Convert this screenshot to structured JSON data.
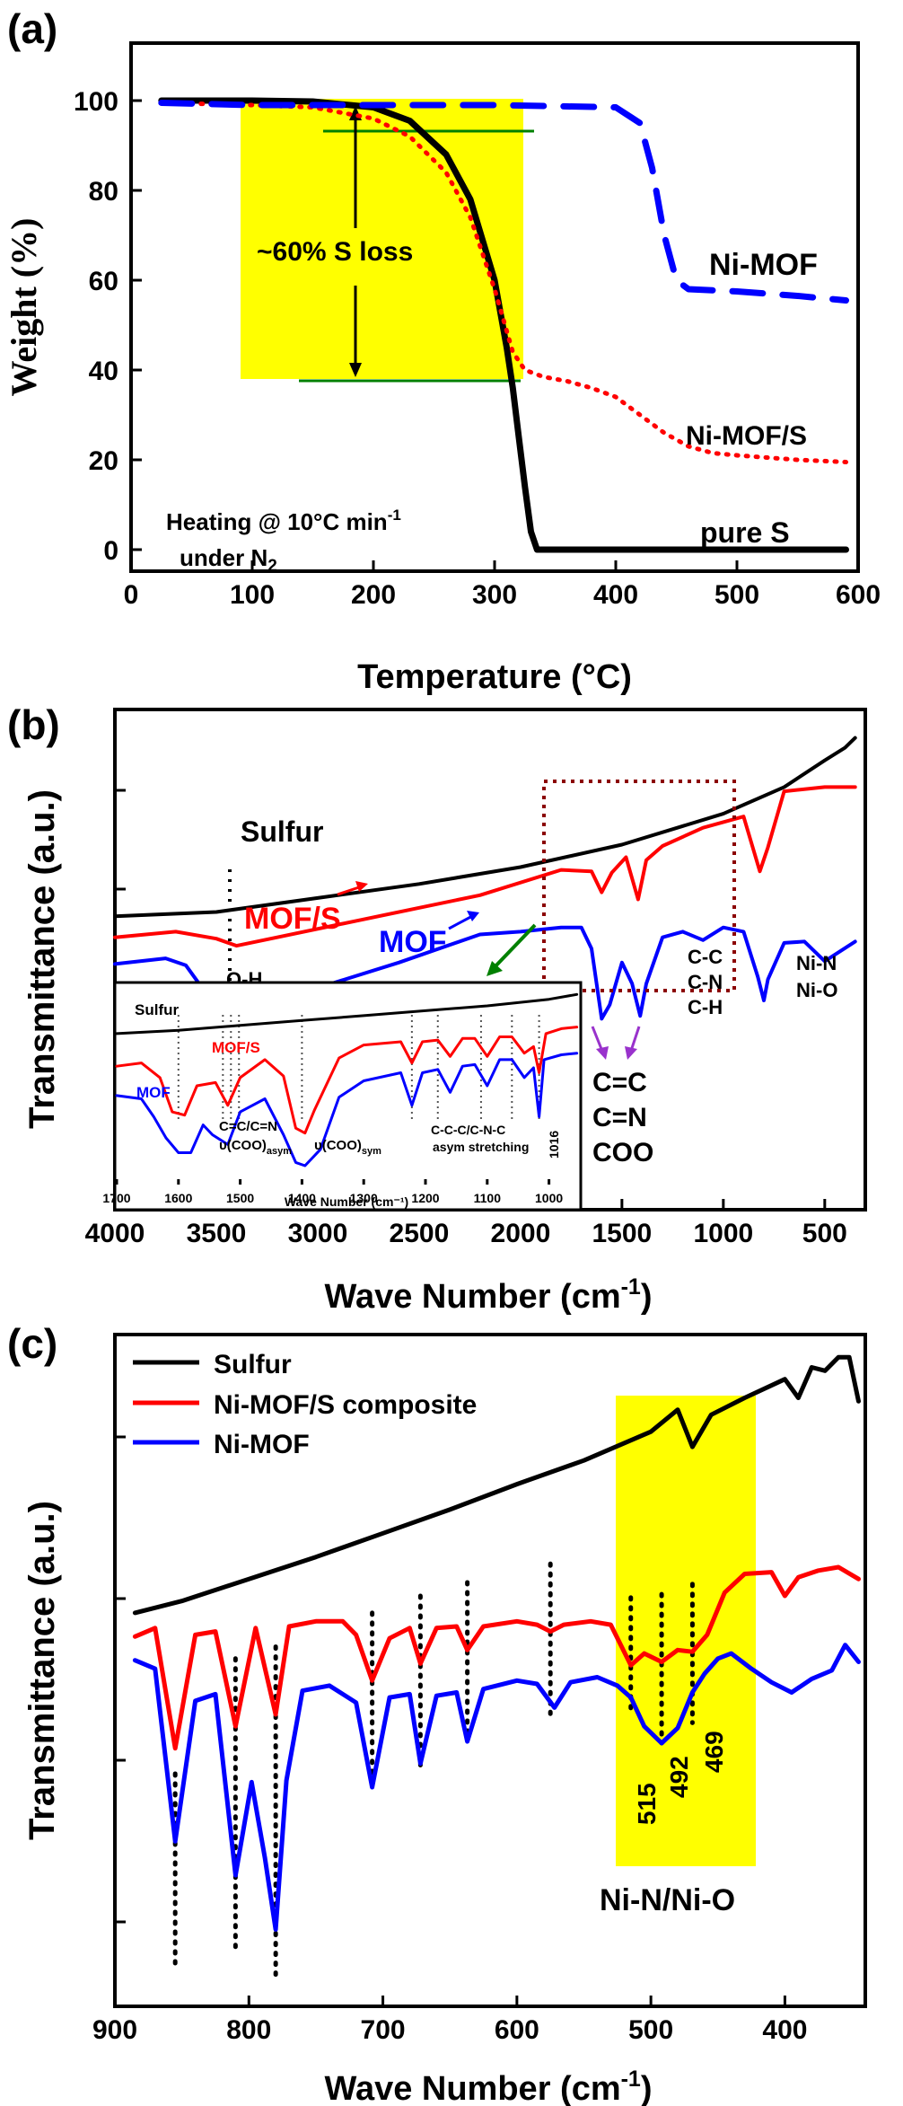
{
  "panels": [
    {
      "letter": "(a)",
      "chart_data": {
        "type": "line",
        "xlabel": "Temperature (°C)",
        "ylabel": "Weight (%)",
        "xlim": [
          0,
          600
        ],
        "ylim": [
          -6,
          112
        ],
        "xticks": [
          0,
          100,
          200,
          300,
          400,
          500,
          600
        ],
        "yticks": [
          0,
          20,
          40,
          60,
          80,
          100
        ],
        "series": [
          {
            "name": "pure S",
            "color": "#000000",
            "style": "solid",
            "x": [
              25,
              100,
              150,
              200,
              230,
              260,
              280,
              300,
              310,
              315,
              320,
              325,
              330,
              335,
              400,
              500,
              590
            ],
            "y": [
              100,
              100,
              99.8,
              98.5,
              95.5,
              88,
              78,
              60,
              45,
              36,
              25,
              14,
              4,
              0,
              0,
              0,
              0
            ]
          },
          {
            "name": "Ni-MOF/S",
            "color": "#ff0000",
            "style": "dotted",
            "x": [
              25,
              100,
              150,
              200,
              230,
              260,
              280,
              300,
              315,
              325,
              340,
              360,
              380,
              400,
              420,
              440,
              460,
              480,
              500,
              550,
              590
            ],
            "y": [
              99.5,
              99,
              98.5,
              96,
              92,
              84,
              74,
              58,
              44,
              40,
              38.5,
              37.5,
              36,
              34,
              30,
              26,
              23,
              21.5,
              21,
              20,
              19.5
            ]
          },
          {
            "name": "Ni-MOF",
            "color": "#0000ff",
            "style": "dashed",
            "x": [
              25,
              100,
              200,
              300,
              400,
              420,
              430,
              440,
              450,
              460,
              500,
              550,
              590
            ],
            "y": [
              99.5,
              99,
              99,
              99,
              98.5,
              95,
              85,
              70,
              60,
              58,
              57.5,
              56.5,
              55.5
            ]
          }
        ],
        "annotations": {
          "loss_label": "~60% S loss",
          "heating_line1": "Heating @ 10°C min",
          "heating_superscript": "-1",
          "heating_line2": "under N",
          "heating_subscript": "2",
          "label_nimof": "Ni-MOF",
          "label_nimofs": "Ni-MOF/S",
          "label_pures": "pure S",
          "highlight_color": "#ffff00",
          "guide_color": "#008000"
        }
      }
    },
    {
      "letter": "(b)",
      "chart_data": {
        "type": "line",
        "xlabel": "Wave Number (cm",
        "xlabel_superscript": "-1",
        "xlabel_end": ")",
        "ylabel": "Transmittance (a.u.)",
        "xlim": [
          4000,
          300
        ],
        "xticks": [
          4000,
          3500,
          3000,
          2500,
          2000,
          1500,
          1000,
          500
        ],
        "series": [
          {
            "name": "Sulfur",
            "color": "#000000",
            "x": [
              4000,
              3500,
              3000,
              2500,
              2000,
              1500,
              1000,
              700,
              500,
              400,
              350
            ],
            "y": [
              8.3,
              8.6,
              9.6,
              10.6,
              11.8,
              13.4,
              15.6,
              17.5,
              19.4,
              20.3,
              21
            ]
          },
          {
            "name": "MOF/S",
            "color": "#ff0000",
            "x": [
              4000,
              3700,
              3500,
              3400,
              3200,
              2800,
              2200,
              1800,
              1650,
              1600,
              1550,
              1480,
              1420,
              1380,
              1300,
              1100,
              900,
              820,
              780,
              700,
              500,
              350
            ],
            "y": [
              6.8,
              7.2,
              6.7,
              6.2,
              6.8,
              8,
              9.8,
              11.6,
              11.5,
              10,
              11.4,
              12.5,
              9.5,
              12.3,
              13.3,
              14.6,
              15.4,
              11.5,
              13.2,
              17.2,
              17.5,
              17.5
            ]
          },
          {
            "name": "MOF",
            "color": "#0000ff",
            "x": [
              4000,
              3750,
              3650,
              3550,
              3450,
              3300,
              3000,
              2600,
              2200,
              2000,
              1800,
              1700,
              1650,
              1600,
              1560,
              1500,
              1450,
              1410,
              1380,
              1300,
              1200,
              1100,
              1000,
              900,
              830,
              800,
              780,
              700,
              600,
              500,
              350
            ],
            "y": [
              4.9,
              5.3,
              4.8,
              2.8,
              1.8,
              2,
              3.2,
              5,
              7,
              7.2,
              7.5,
              7.5,
              6,
              1,
              2,
              5,
              3.5,
              1.2,
              3.5,
              6.8,
              7.2,
              6.6,
              7.5,
              7.2,
              4,
              2.3,
              3.8,
              6.4,
              6.5,
              5.1,
              6.5
            ]
          }
        ],
        "annotations": {
          "sulfur": "Sulfur",
          "mofs": "MOF/S",
          "mof": "MOF",
          "oh": "O-H",
          "cc_main": "C-C",
          "cn_main": "C-N",
          "ch_main": "C-H",
          "nin": "Ni-N",
          "nio": "Ni-O",
          "cc_double": "C=C",
          "cn_double": "C=N",
          "coo": "COO"
        },
        "inset": {
          "xlim": [
            1700,
            950
          ],
          "xticks_labels": [
            "1700",
            "1600",
            "1500",
            "1400",
            "1300",
            "1200",
            "1100",
            "1000"
          ],
          "xlabel": "Wave Number (cm⁻¹)",
          "series": [
            {
              "name": "Sulfur",
              "color": "#000000",
              "x": [
                1700,
                1600,
                1500,
                1400,
                1300,
                1200,
                1100,
                1000,
                955
              ],
              "y": [
                9.2,
                9.4,
                9.7,
                10,
                10.3,
                10.6,
                10.9,
                11.3,
                11.6
              ]
            },
            {
              "name": "MOF/S",
              "color": "#ff0000",
              "x": [
                1700,
                1660,
                1630,
                1610,
                1590,
                1570,
                1540,
                1520,
                1500,
                1460,
                1430,
                1410,
                1395,
                1380,
                1340,
                1300,
                1240,
                1222,
                1205,
                1180,
                1160,
                1140,
                1120,
                1100,
                1080,
                1060,
                1040,
                1025,
                1016,
                1005,
                980,
                955
              ],
              "y": [
                7.2,
                7.4,
                6.5,
                4.4,
                4.2,
                6.0,
                6.2,
                4.8,
                6.5,
                7.6,
                6.6,
                3.4,
                3.1,
                4.5,
                7.7,
                8.5,
                8.7,
                7.4,
                8.7,
                8.8,
                7.8,
                8.9,
                8.9,
                7.8,
                9.0,
                9.0,
                8.0,
                8.4,
                6.8,
                9.2,
                9.5,
                9.6
              ]
            },
            {
              "name": "MOF",
              "color": "#0000ff",
              "x": [
                1700,
                1660,
                1640,
                1620,
                1600,
                1580,
                1560,
                1545,
                1520,
                1500,
                1460,
                1430,
                1410,
                1395,
                1370,
                1340,
                1300,
                1240,
                1222,
                1205,
                1180,
                1160,
                1140,
                1120,
                1100,
                1080,
                1060,
                1040,
                1025,
                1016,
                1008,
                980,
                955
              ],
              "y": [
                5.4,
                5.2,
                4.1,
                2.8,
                1.9,
                1.9,
                3.6,
                3.0,
                2.4,
                4.4,
                5.2,
                3.0,
                1.3,
                1.1,
                2.1,
                5.3,
                6.3,
                6.8,
                4.8,
                6.8,
                7.0,
                5.6,
                7.2,
                7.3,
                6.0,
                7.6,
                7.6,
                6.5,
                7.1,
                4.1,
                7.6,
                7.9,
                8.0
              ]
            }
          ],
          "labels": {
            "sulfur": "Sulfur",
            "mofs": "MOF/S",
            "mof": "MOF",
            "peak1": "C=C/C=N",
            "peak1b": "υ(COO)",
            "peak1b_sub": "asym",
            "peak2": "υ(COO)",
            "peak2_sub": "sym",
            "peak3": "C-C-C/C-N-C",
            "peak3b": "asym stretching",
            "peak4": "1016"
          }
        }
      }
    },
    {
      "letter": "(c)",
      "chart_data": {
        "type": "line",
        "xlabel": "Wave Number (cm",
        "xlabel_superscript": "-1",
        "xlabel_end": ")",
        "ylabel": "Transmittance (a.u.)",
        "xlim": [
          900,
          340
        ],
        "xticks": [
          900,
          800,
          700,
          600,
          500,
          400
        ],
        "series": [
          {
            "name": "Sulfur",
            "color": "#000000",
            "x": [
              885,
              850,
              800,
              750,
              700,
              650,
              600,
              550,
              500,
              480,
              469,
              455,
              430,
              400,
              390,
              380,
              370,
              360,
              352,
              345
            ],
            "y": [
              42.5,
              43.2,
              44.5,
              45.8,
              47.2,
              48.6,
              50.1,
              51.5,
              53.2,
              54.5,
              52.3,
              54.2,
              55.2,
              56.3,
              55.2,
              57,
              56.8,
              57.6,
              57.6,
              55
            ]
          },
          {
            "name": "Ni-MOF/S composite",
            "color": "#ff0000",
            "x": [
              885,
              870,
              855,
              840,
              825,
              810,
              795,
              780,
              770,
              750,
              730,
              720,
              708,
              695,
              680,
              672,
              660,
              645,
              637,
              625,
              600,
              585,
              575,
              565,
              545,
              530,
              515,
              505,
              492,
              480,
              469,
              458,
              445,
              430,
              410,
              400,
              390,
              375,
              360,
              345
            ],
            "y": [
              41.1,
              41.6,
              34.5,
              41.2,
              41.4,
              35.8,
              41.6,
              36.5,
              41.7,
              42,
              42,
              41.2,
              38.5,
              41,
              41.6,
              39.5,
              41.6,
              41.7,
              40.3,
              41.7,
              42,
              41.8,
              41.4,
              41.8,
              42,
              41.8,
              39.4,
              40.1,
              39.6,
              40.3,
              40.2,
              41.2,
              43.7,
              44.8,
              44.9,
              43.5,
              44.6,
              45,
              45.2,
              44.5
            ]
          },
          {
            "name": "Ni-MOF",
            "color": "#0000ff",
            "x": [
              885,
              870,
              855,
              840,
              825,
              810,
              798,
              788,
              780,
              772,
              760,
              740,
              720,
              708,
              695,
              680,
              672,
              660,
              645,
              637,
              625,
              600,
              585,
              572,
              560,
              540,
              525,
              515,
              505,
              492,
              480,
              469,
              460,
              450,
              440,
              425,
              410,
              395,
              380,
              365,
              355,
              345
            ],
            "y": [
              39.7,
              39.2,
              29,
              37.3,
              37.7,
              27,
              32.5,
              28,
              23.8,
              32.6,
              37.9,
              38.2,
              37.2,
              32.2,
              37.5,
              37.7,
              33.6,
              37.6,
              37.8,
              34.9,
              38,
              38.5,
              38.3,
              36.9,
              38.4,
              38.7,
              38.2,
              37.5,
              35.8,
              34.8,
              35.7,
              37.8,
              38.9,
              39.8,
              40.1,
              39.2,
              38.4,
              37.8,
              38.6,
              39.1,
              40.6,
              39.6
            ]
          }
        ],
        "legend": {
          "position": "top-left",
          "entries": [
            "Sulfur",
            "Ni-MOF/S composite",
            "Ni-MOF"
          ]
        },
        "annotations": {
          "peak515": "515",
          "peak492": "492",
          "peak469": "469",
          "region_label": "Ni-N/Ni-O",
          "highlight_color": "#ffff00"
        }
      }
    }
  ]
}
